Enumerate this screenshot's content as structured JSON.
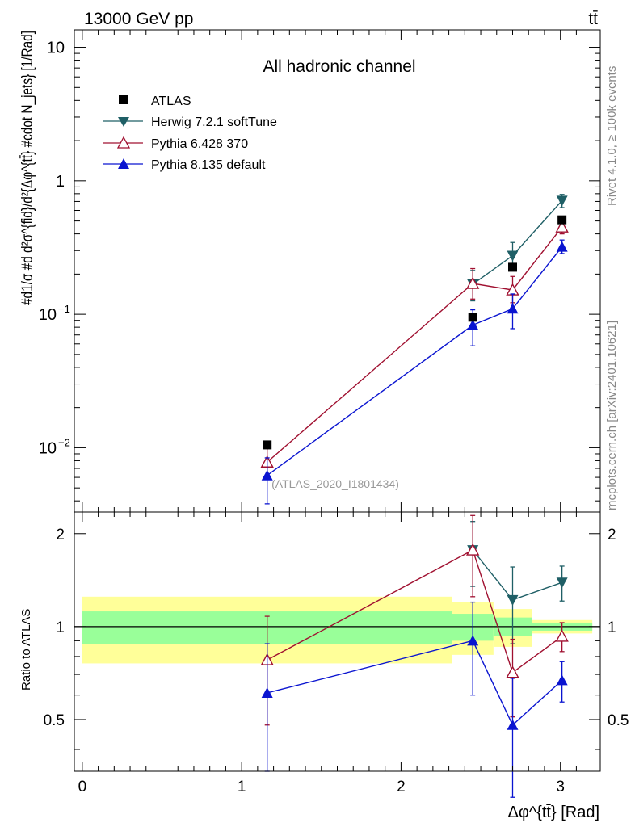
{
  "header": {
    "energy_label": "13000 GeV pp",
    "process_label": "tt̄"
  },
  "side_labels": {
    "rivet": "Rivet 4.1.0, ≥ 100k events",
    "mcplots": "mcplots.cern.ch [arXiv:2401.10621]"
  },
  "chart_data": {
    "type": "scatter",
    "title": "All hadronic channel",
    "analysis_label": "(ATLAS_2020_I1801434)",
    "xlabel": "Δφ^{tt̄} [Rad]",
    "ylabel_main": "#d1/σ #d d²σ^{fid}/d²{Δφ^{tt̄} #cdot N_jets} [1/Rad]",
    "ylabel_ratio": "Ratio to ATLAS",
    "xlim": [
      -0.05,
      3.25
    ],
    "ylim_main": [
      0.0033,
      13.5
    ],
    "ylim_ratio": [
      0.34,
      2.35
    ],
    "ylog": true,
    "x_ticks": [
      0,
      1,
      2,
      3
    ],
    "x_tick_labels": [
      "0",
      "1",
      "2",
      "3"
    ],
    "y_ticks_main": [
      0.01,
      0.1,
      1,
      10
    ],
    "y_ticks_ratio": [
      0.5,
      1,
      2
    ],
    "y_tick_labels_ratio": [
      "0.5",
      "1",
      "2"
    ],
    "bins": [
      [
        0,
        2.32
      ],
      [
        2.32,
        2.58
      ],
      [
        2.58,
        2.82
      ],
      [
        2.82,
        3.2
      ]
    ],
    "x": [
      1.16,
      2.45,
      2.7,
      3.01
    ],
    "data": {
      "name": "ATLAS",
      "values": [
        0.0105,
        0.095,
        0.225,
        0.51
      ],
      "band_inner": [
        [
          0.88,
          1.12
        ],
        [
          0.9,
          1.1
        ],
        [
          0.93,
          1.07
        ],
        [
          0.97,
          1.03
        ]
      ],
      "band_outer": [
        [
          0.76,
          1.25
        ],
        [
          0.81,
          1.2
        ],
        [
          0.86,
          1.14
        ],
        [
          0.95,
          1.05
        ]
      ]
    },
    "series": [
      {
        "name": "Herwig 7.2.1 softTune",
        "color": "#1f5f66",
        "marker": "triangle-down",
        "values": [
          null,
          0.168,
          0.275,
          0.71
        ],
        "errors_low": [
          null,
          0.042,
          0.06,
          0.08
        ],
        "errors_high": [
          null,
          0.045,
          0.07,
          0.08
        ],
        "ratio": [
          null,
          1.77,
          1.22,
          1.39
        ],
        "ratio_err": [
          null,
          0.42,
          0.34,
          0.18
        ]
      },
      {
        "name": "Pythia 6.428 370",
        "color": "#a01030",
        "marker": "triangle-open",
        "values": [
          0.0078,
          0.17,
          0.152,
          0.45
        ],
        "errors_low": [
          0.0018,
          0.04,
          0.03,
          0.05
        ],
        "errors_high": [
          0.0022,
          0.05,
          0.04,
          0.05
        ],
        "ratio": [
          0.78,
          1.77,
          0.71,
          0.93
        ],
        "ratio_err": [
          0.3,
          0.52,
          0.2,
          0.1
        ]
      },
      {
        "name": "Pythia 8.135 default",
        "color": "#0a14d0",
        "marker": "triangle-up",
        "values": [
          0.0062,
          0.083,
          0.11,
          0.32
        ],
        "errors_low": [
          0.0024,
          0.025,
          0.032,
          0.035
        ],
        "errors_high": [
          0.0022,
          0.025,
          0.032,
          0.04
        ],
        "ratio": [
          0.61,
          0.9,
          0.48,
          0.67
        ],
        "ratio_err": [
          0.27,
          0.3,
          0.2,
          0.1
        ]
      }
    ]
  }
}
